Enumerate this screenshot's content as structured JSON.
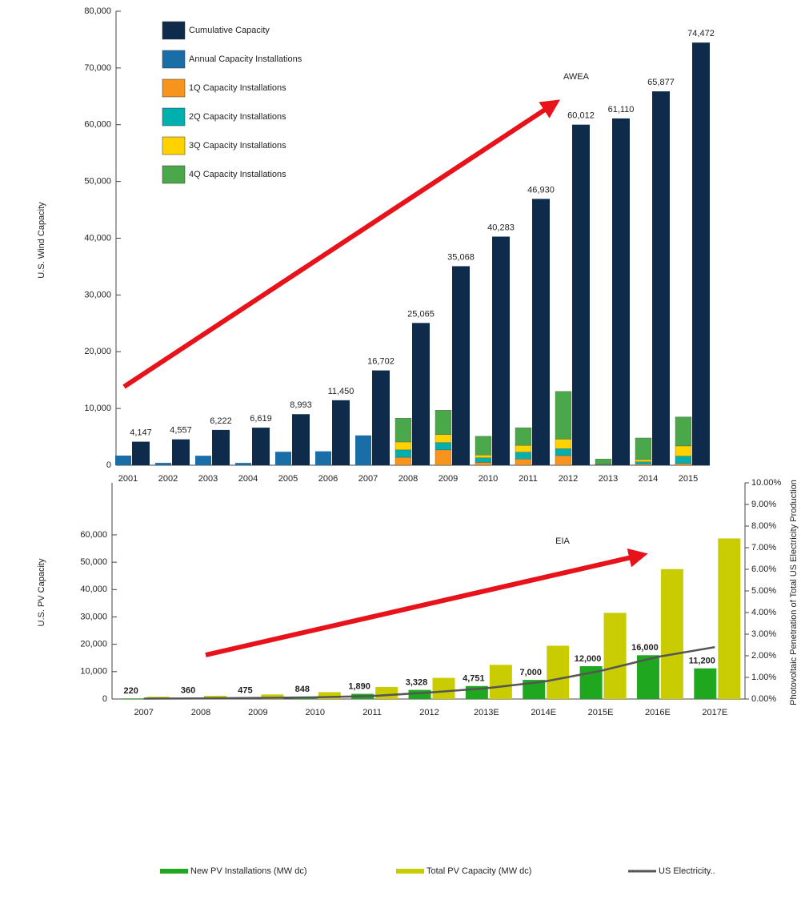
{
  "chart_data": [
    {
      "type": "bar",
      "ylabel": "U.S. Wind Capacity",
      "annotation": "AWEA",
      "categories": [
        "2001",
        "2002",
        "2003",
        "2004",
        "2005",
        "2006",
        "2007",
        "2008",
        "2009",
        "2010",
        "2011",
        "2012",
        "2013",
        "2014",
        "2015"
      ],
      "series": [
        {
          "name": "Cumulative Capacity",
          "color": "#0f2b4b",
          "values": [
            4147,
            4557,
            6222,
            6619,
            8993,
            11450,
            16702,
            25065,
            35068,
            40283,
            46930,
            60012,
            61110,
            65877,
            74472
          ],
          "value_labels": [
            "4,147",
            "4,557",
            "6,222",
            "6,619",
            "8,993",
            "11,450",
            "16,702",
            "25,065",
            "35,068",
            "40,283",
            "46,930",
            "60,012",
            "61,110",
            "65,877",
            "74,472"
          ]
        },
        {
          "name": "Annual Capacity Installations",
          "color": "#1a6ea8",
          "values": [
            1700,
            410,
            1670,
            400,
            2370,
            2450,
            5250,
            null,
            null,
            null,
            null,
            null,
            null,
            null,
            null
          ]
        },
        {
          "name": "1Q Capacity Installations",
          "color": "#f7941d",
          "values": [
            null,
            null,
            null,
            null,
            null,
            null,
            null,
            1400,
            2700,
            500,
            1100,
            1700,
            0,
            200,
            300
          ]
        },
        {
          "name": "2Q Capacity Installations",
          "color": "#00b0ae",
          "values": [
            null,
            null,
            null,
            null,
            null,
            null,
            null,
            1300,
            1300,
            800,
            1200,
            1200,
            100,
            400,
            1300
          ]
        },
        {
          "name": "3Q Capacity Installations",
          "color": "#ffd200",
          "values": [
            null,
            null,
            null,
            null,
            null,
            null,
            null,
            1400,
            1400,
            500,
            1200,
            1700,
            100,
            400,
            1800
          ]
        },
        {
          "name": "4Q Capacity Installations",
          "color": "#4aa84a",
          "values": [
            null,
            null,
            null,
            null,
            null,
            null,
            null,
            4200,
            4300,
            3300,
            3100,
            8400,
            900,
            3800,
            5100
          ]
        }
      ],
      "ylim": [
        0,
        80000
      ],
      "yticks": [
        0,
        {
          "value": 10000,
          "label": "10,000"
        },
        {
          "value": 20000,
          "label": "20,000"
        },
        {
          "value": 30000,
          "label": "30,000"
        },
        {
          "value": 40000,
          "label": "40,000"
        },
        {
          "value": 50000,
          "label": "50,000"
        },
        {
          "value": 60000,
          "label": "60,000"
        },
        {
          "value": 70000,
          "label": "70,000"
        },
        {
          "value": 80000,
          "label": "80,000"
        }
      ],
      "legend": "upper left"
    },
    {
      "type": "combo",
      "ylabel": "U.S. PV Capacity",
      "y2label": "Photovoltaic Penetration of Total US Electricity Production",
      "annotation": "EIA",
      "categories": [
        "2007",
        "2008",
        "2009",
        "2010",
        "2011",
        "2012",
        "2013E",
        "2014E",
        "2015E",
        "2016E",
        "2017E"
      ],
      "series": [
        {
          "name": "New PV Installations (MW dc)",
          "color": "#1fa81f",
          "values": [
            220,
            360,
            475,
            848,
            1890,
            3328,
            4751,
            7000,
            12000,
            16000,
            11200
          ],
          "value_labels": [
            "220",
            "360",
            "475",
            "848",
            "1,890",
            "3,328",
            "4,751",
            "7,000",
            "12,000",
            "16,000",
            "11,200"
          ]
        },
        {
          "name": "Total PV Capacity (MW dc)",
          "color": "#c8cc00",
          "values": [
            830,
            1190,
            1665,
            2513,
            4403,
            7731,
            12482,
            19482,
            31482,
            47482,
            58682
          ]
        },
        {
          "name": "US Electricity..",
          "color": "#555555",
          "axis": "y2",
          "values": [
            0.02,
            0.03,
            0.05,
            0.08,
            0.14,
            0.3,
            0.5,
            0.8,
            1.3,
            1.95,
            2.4
          ]
        }
      ],
      "ylim": [
        0,
        79000
      ],
      "yticks": [
        0,
        {
          "value": 10000,
          "label": "10,000"
        },
        {
          "value": 20000,
          "label": "20,000"
        },
        {
          "value": 30000,
          "label": "30,000"
        },
        {
          "value": 40000,
          "label": "40,000"
        },
        {
          "value": 50000,
          "label": "50,000"
        },
        {
          "value": 60000,
          "label": "60,000"
        }
      ],
      "y2lim": [
        0,
        10
      ],
      "y2ticks": [
        {
          "value": 0,
          "label": "0.00%"
        },
        {
          "value": 1,
          "label": "1.00%"
        },
        {
          "value": 2,
          "label": "2.00%"
        },
        {
          "value": 3,
          "label": "3.00%"
        },
        {
          "value": 4,
          "label": "4.00%"
        },
        {
          "value": 5,
          "label": "5.00%"
        },
        {
          "value": 6,
          "label": "6.00%"
        },
        {
          "value": 7,
          "label": "7.00%"
        },
        {
          "value": 8,
          "label": "8.00%"
        },
        {
          "value": 9,
          "label": "9.00%"
        },
        {
          "value": 10,
          "label": "10.00%"
        }
      ],
      "legend": "bottom"
    }
  ]
}
